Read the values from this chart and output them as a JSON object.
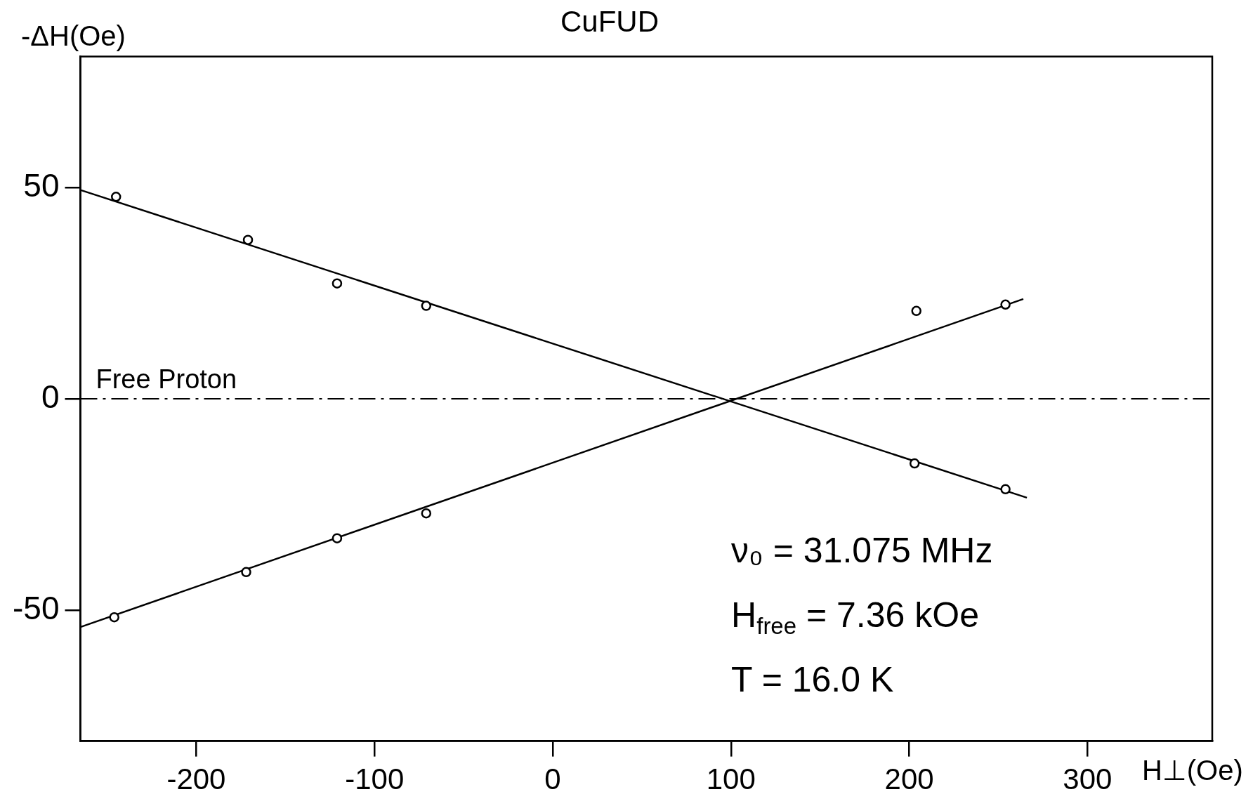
{
  "chart_data": {
    "type": "scatter",
    "title": "CuFUD",
    "xlabel": "H⊥(Oe)",
    "ylabel": "-ΔH(Oe)",
    "xlim": [
      -265,
      370
    ],
    "ylim": [
      -81,
      81
    ],
    "xticks": [
      -200,
      -100,
      0,
      100,
      200,
      300
    ],
    "yticks": [
      -50,
      0,
      50
    ],
    "grid": false,
    "legend": false,
    "marker": "circle",
    "series": [
      {
        "type": "scatter",
        "color": "#000000",
        "x": [
          -245,
          -171,
          -121,
          -71,
          203,
          254
        ],
        "values": [
          47.8,
          37.6,
          27.3,
          22.0,
          -15.3,
          -21.4
        ]
      },
      {
        "type": "scatter",
        "color": "#000000",
        "x": [
          -246,
          -172,
          -121,
          -71,
          204,
          254
        ],
        "values": [
          -51.7,
          -41.0,
          -33.0,
          -27.1,
          20.8,
          22.3
        ]
      },
      {
        "type": "line",
        "color": "#000000",
        "marker": "none",
        "x": [
          -265,
          266
        ],
        "values": [
          49.4,
          -23.4
        ]
      },
      {
        "type": "line",
        "color": "#000000",
        "marker": "none",
        "x": [
          -265,
          264
        ],
        "values": [
          -54.0,
          23.6
        ]
      }
    ],
    "ref_lines": [
      {
        "axis": "y",
        "value": 0,
        "label": "Free Proton",
        "line_style": "dashed",
        "color": "#000000"
      }
    ],
    "annotations": [
      "ν₀ = 31.075 MHz",
      "H$_{free}$ = 7.36 kOe",
      "T = 16.0 K"
    ]
  }
}
